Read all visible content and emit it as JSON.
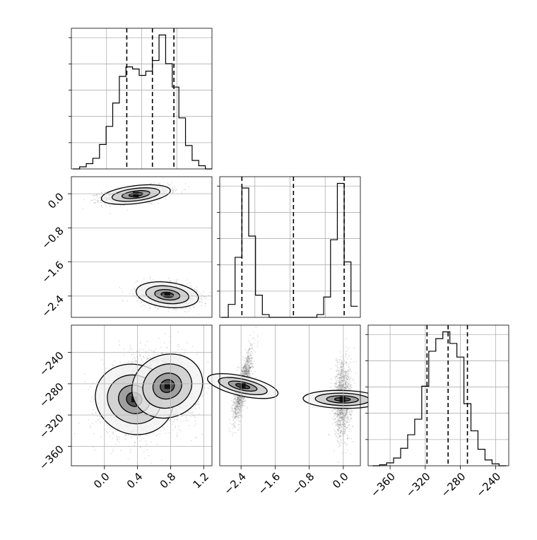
{
  "chart_data": [
    {
      "type": "histogram",
      "xlim": [
        -0.4,
        1.3
      ],
      "quantiles": [
        0.27,
        0.58,
        0.84
      ],
      "bins": [
        -0.38,
        -0.3,
        -0.22,
        -0.14,
        -0.06,
        0.02,
        0.1,
        0.18,
        0.26,
        0.34,
        0.42,
        0.5,
        0.58,
        0.66,
        0.74,
        0.82,
        0.9,
        0.98,
        1.06,
        1.14,
        1.22,
        1.3
      ],
      "counts": [
        0,
        2,
        5,
        10,
        23,
        40,
        62,
        87,
        96,
        94,
        88,
        92,
        102,
        126,
        99,
        77,
        48,
        22,
        8,
        3,
        0
      ]
    },
    {
      "type": "scatter",
      "xlim": [
        -0.4,
        1.3
      ],
      "ylim": [
        -2.9,
        0.4
      ],
      "ytick_labels": [
        "0.0",
        "−0.8",
        "−1.6",
        "−2.4"
      ],
      "yticks": [
        0.0,
        -0.8,
        -1.6,
        -2.4
      ],
      "modes": [
        {
          "cx": 0.38,
          "cy": -0.02,
          "sx": 0.2,
          "sy": 0.1,
          "rho": 0.45,
          "n": 1300
        },
        {
          "cx": 0.76,
          "cy": -2.37,
          "sx": 0.18,
          "sy": 0.14,
          "rho": -0.25,
          "n": 1300
        }
      ]
    },
    {
      "type": "histogram",
      "xlim": [
        -2.9,
        0.4
      ],
      "quantiles": [
        -2.38,
        -1.17,
        0.02
      ],
      "bins": [
        -2.86,
        -2.7,
        -2.54,
        -2.38,
        -2.22,
        -2.06,
        -1.9,
        -1.74,
        -1.58,
        -1.42,
        -1.26,
        -1.1,
        -0.94,
        -0.78,
        -0.62,
        -0.46,
        -0.3,
        -0.14,
        0.02,
        0.18,
        0.34
      ],
      "counts": [
        0,
        14,
        65,
        140,
        88,
        24,
        3,
        0,
        0,
        0,
        0,
        0,
        0,
        0,
        3,
        22,
        84,
        145,
        60,
        12
      ]
    },
    {
      "type": "scatter",
      "xlim": [
        -0.4,
        1.3
      ],
      "ylim": [
        -385,
        -205
      ],
      "ytick_labels": [
        "−240",
        "−280",
        "−320",
        "−360"
      ],
      "yticks": [
        -240,
        -280,
        -320,
        -360
      ],
      "xtick_labels": [
        "0.0",
        "0.4",
        "0.8",
        "1.2"
      ],
      "xticks": [
        0.0,
        0.4,
        0.8,
        1.2
      ],
      "modes": [
        {
          "cx": 0.36,
          "cy": -300,
          "sx": 0.2,
          "sy": 24,
          "rho": 0.1,
          "n": 1400
        },
        {
          "cx": 0.76,
          "cy": -283,
          "sx": 0.18,
          "sy": 22,
          "rho": -0.15,
          "n": 1400
        }
      ]
    },
    {
      "type": "scatter",
      "xlim": [
        -2.9,
        0.4
      ],
      "ylim": [
        -385,
        -205
      ],
      "xtick_labels": [
        "−2.4",
        "−1.6",
        "−0.8",
        "0.0"
      ],
      "xticks": [
        -2.4,
        -1.6,
        -0.8,
        0.0
      ],
      "modes": [
        {
          "cx": -2.36,
          "cy": -283,
          "sx": 0.11,
          "sy": 22,
          "rho": 0.8,
          "n": 1400
        },
        {
          "cx": -0.02,
          "cy": -300,
          "sx": 0.1,
          "sy": 24,
          "rho": 0.1,
          "n": 1400
        }
      ]
    },
    {
      "type": "histogram",
      "xlim": [
        -385,
        -225
      ],
      "quantiles": [
        -318,
        -294,
        -272
      ],
      "xtick_labels": [
        "−360",
        "−320",
        "−280",
        "−240"
      ],
      "xticks": [
        -360,
        -320,
        -280,
        -240
      ],
      "bins": [
        -380,
        -372,
        -364,
        -356,
        -348,
        -340,
        -332,
        -324,
        -316,
        -308,
        -300,
        -292,
        -284,
        -276,
        -268,
        -260,
        -252,
        -244,
        -236,
        -228
      ],
      "counts": [
        0,
        1,
        3,
        8,
        18,
        32,
        48,
        82,
        118,
        131,
        138,
        126,
        112,
        64,
        36,
        17,
        6,
        2,
        0
      ]
    }
  ]
}
